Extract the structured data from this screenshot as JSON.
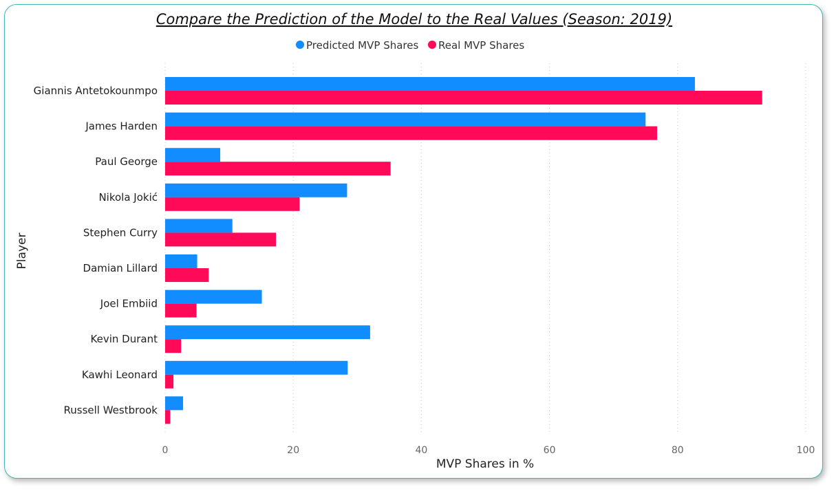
{
  "chart_data": {
    "type": "bar",
    "orientation": "horizontal",
    "title": "Compare the Prediction of the Model to the Real Values (Season: 2019)",
    "xlabel": "MVP Shares in %",
    "ylabel": "Player",
    "xlim": [
      0,
      100
    ],
    "xticks": [
      "0",
      "20",
      "40",
      "60",
      "80",
      "100"
    ],
    "grid": true,
    "legend": "top-center",
    "categories": [
      "Giannis Antetokounmpo",
      "James Harden",
      "Paul George",
      "Nikola Jokić",
      "Stephen Curry",
      "Damian Lillard",
      "Joel Embiid",
      "Kevin Durant",
      "Kawhi Leonard",
      "Russell Westbrook"
    ],
    "series": [
      {
        "name": "Predicted MVP Shares",
        "color": "#118dff",
        "values": [
          82.7,
          75.0,
          8.6,
          28.4,
          10.5,
          5.0,
          15.1,
          32.0,
          28.5,
          2.8
        ]
      },
      {
        "name": "Real MVP Shares",
        "color": "#ff0a58",
        "values": [
          93.2,
          76.8,
          35.2,
          21.0,
          17.3,
          6.8,
          4.9,
          2.5,
          1.3,
          0.8
        ]
      }
    ]
  }
}
